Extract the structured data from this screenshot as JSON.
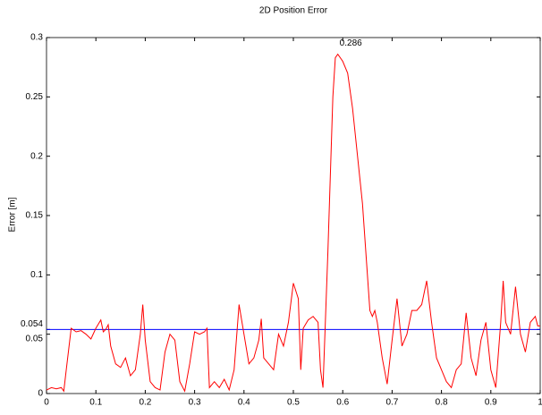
{
  "chart_data": {
    "type": "line",
    "title": "2D Position Error",
    "ylabel": "Error [m]",
    "x": [
      0,
      0.01,
      0.02,
      0.03,
      0.035,
      0.04,
      0.05,
      0.06,
      0.07,
      0.08,
      0.09,
      0.1,
      0.11,
      0.115,
      0.12,
      0.125,
      0.13,
      0.14,
      0.15,
      0.16,
      0.17,
      0.18,
      0.19,
      0.195,
      0.2,
      0.21,
      0.22,
      0.23,
      0.24,
      0.25,
      0.26,
      0.27,
      0.28,
      0.29,
      0.3,
      0.31,
      0.32,
      0.325,
      0.33,
      0.34,
      0.35,
      0.36,
      0.37,
      0.38,
      0.39,
      0.4,
      0.41,
      0.42,
      0.43,
      0.435,
      0.44,
      0.45,
      0.46,
      0.47,
      0.48,
      0.49,
      0.5,
      0.51,
      0.515,
      0.52,
      0.53,
      0.54,
      0.55,
      0.555,
      0.56,
      0.57,
      0.58,
      0.585,
      0.59,
      0.6,
      0.61,
      0.62,
      0.63,
      0.64,
      0.65,
      0.655,
      0.66,
      0.665,
      0.67,
      0.68,
      0.69,
      0.7,
      0.71,
      0.72,
      0.73,
      0.74,
      0.75,
      0.76,
      0.77,
      0.78,
      0.79,
      0.8,
      0.81,
      0.82,
      0.83,
      0.84,
      0.85,
      0.86,
      0.87,
      0.88,
      0.89,
      0.9,
      0.91,
      0.92,
      0.925,
      0.93,
      0.94,
      0.95,
      0.96,
      0.97,
      0.98,
      0.99,
      0.995,
      1
    ],
    "series": [
      {
        "color": "#ff0000",
        "values": [
          0.003,
          0.005,
          0.004,
          0.005,
          0.002,
          0.02,
          0.055,
          0.052,
          0.053,
          0.05,
          0.046,
          0.055,
          0.062,
          0.052,
          0.054,
          0.058,
          0.04,
          0.025,
          0.022,
          0.03,
          0.015,
          0.02,
          0.05,
          0.075,
          0.045,
          0.01,
          0.005,
          0.003,
          0.035,
          0.05,
          0.045,
          0.01,
          0.002,
          0.025,
          0.052,
          0.05,
          0.052,
          0.055,
          0.005,
          0.01,
          0.005,
          0.012,
          0.003,
          0.02,
          0.075,
          0.05,
          0.025,
          0.03,
          0.045,
          0.063,
          0.03,
          0.025,
          0.02,
          0.05,
          0.04,
          0.06,
          0.093,
          0.08,
          0.02,
          0.055,
          0.062,
          0.065,
          0.06,
          0.02,
          0.005,
          0.12,
          0.25,
          0.283,
          0.286,
          0.28,
          0.27,
          0.24,
          0.2,
          0.16,
          0.1,
          0.07,
          0.065,
          0.07,
          0.06,
          0.03,
          0.008,
          0.045,
          0.08,
          0.04,
          0.05,
          0.07,
          0.07,
          0.075,
          0.095,
          0.06,
          0.03,
          0.02,
          0.01,
          0.005,
          0.02,
          0.025,
          0.068,
          0.03,
          0.015,
          0.045,
          0.06,
          0.02,
          0.005,
          0.06,
          0.095,
          0.06,
          0.05,
          0.09,
          0.05,
          0.035,
          0.06,
          0.065,
          0.057,
          0.057
        ]
      }
    ],
    "hline": {
      "value": 0.054,
      "color": "#0000ff"
    },
    "peak": 0.286,
    "xlim": [
      0,
      1
    ],
    "ylim": [
      0,
      0.3
    ],
    "xticks": [
      0,
      0.1,
      0.2,
      0.3,
      0.4,
      0.5,
      0.6,
      0.7,
      0.8,
      0.9,
      1
    ],
    "yticks": [
      0,
      0.05,
      0.054,
      0.1,
      0.15,
      0.2,
      0.25,
      0.3
    ]
  }
}
